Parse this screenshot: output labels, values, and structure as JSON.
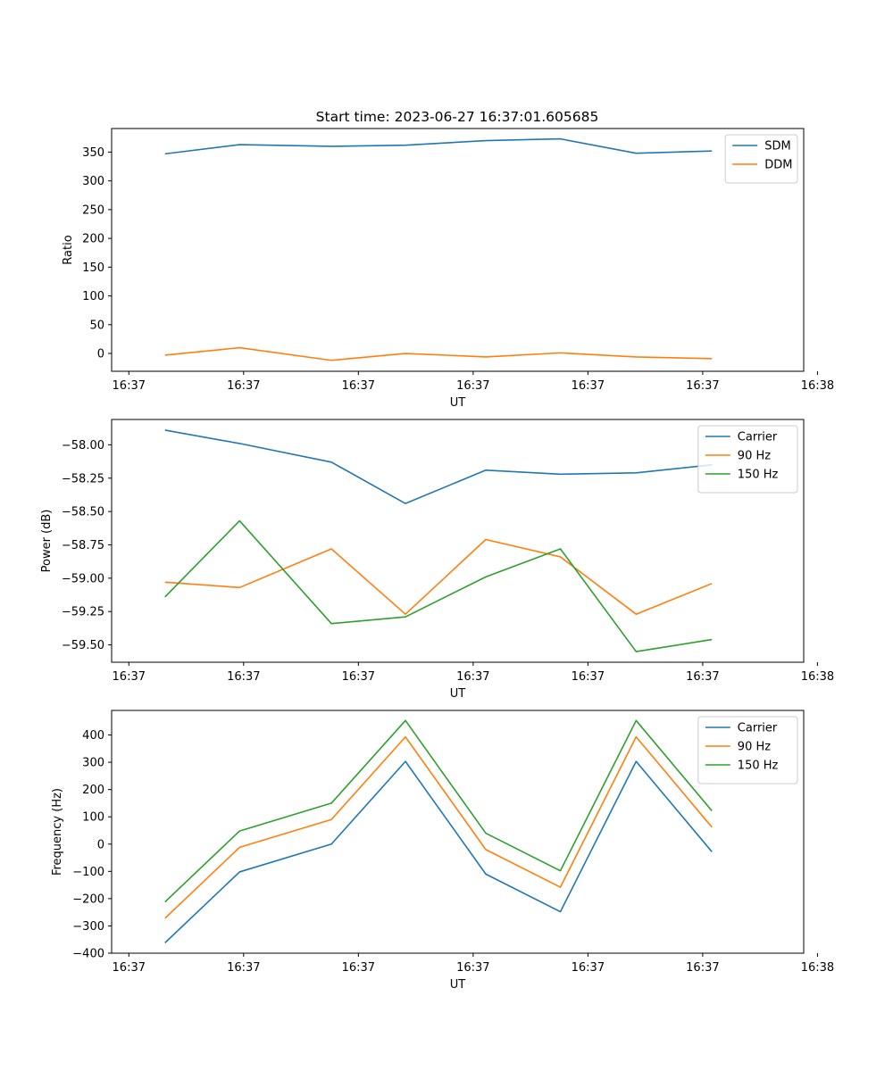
{
  "figure": {
    "title": "Start time: 2023-06-27 16:37:01.605685"
  },
  "chart_data": [
    {
      "type": "line",
      "xlabel": "UT",
      "ylabel": "Ratio",
      "x_tick_labels": [
        "16:37",
        "16:37",
        "16:37",
        "16:37",
        "16:37",
        "16:37",
        "16:38"
      ],
      "xlim": [
        -0.15,
        5.88
      ],
      "x": [
        0.315,
        0.965,
        1.765,
        2.41,
        3.11,
        3.76,
        4.42,
        5.08
      ],
      "ylim": [
        -31,
        391
      ],
      "yticks": [
        0,
        50,
        100,
        150,
        200,
        250,
        300,
        350
      ],
      "legend": "top-right",
      "series": [
        {
          "name": "SDM",
          "color": "#1f77b4",
          "values": [
            347,
            363,
            360,
            362,
            370,
            373,
            348,
            352
          ]
        },
        {
          "name": "DDM",
          "color": "#ff7f0e",
          "values": [
            -3,
            10,
            -12,
            0,
            -6,
            1,
            -6,
            -9
          ]
        }
      ]
    },
    {
      "type": "line",
      "xlabel": "UT",
      "ylabel": "Power (dB)",
      "x_tick_labels": [
        "16:37",
        "16:37",
        "16:37",
        "16:37",
        "16:37",
        "16:37",
        "16:38"
      ],
      "xlim": [
        -0.15,
        5.88
      ],
      "x": [
        0.315,
        0.965,
        1.765,
        2.41,
        3.11,
        3.76,
        4.42,
        5.08
      ],
      "ylim": [
        -59.63,
        -57.81
      ],
      "yticks": [
        -58.0,
        -58.25,
        -58.5,
        -58.75,
        -59.0,
        -59.25,
        -59.5
      ],
      "ytick_labels": [
        "−58.00",
        "−58.25",
        "−58.50",
        "−58.75",
        "−59.00",
        "−59.25",
        "−59.50"
      ],
      "legend": "top-right",
      "series": [
        {
          "name": "Carrier",
          "color": "#1f77b4",
          "values": [
            -57.89,
            -57.99,
            -58.13,
            -58.44,
            -58.19,
            -58.22,
            -58.21,
            -58.15
          ]
        },
        {
          "name": "90 Hz",
          "color": "#ff7f0e",
          "values": [
            -59.03,
            -59.07,
            -58.78,
            -59.27,
            -58.71,
            -58.84,
            -59.27,
            -59.04
          ]
        },
        {
          "name": "150 Hz",
          "color": "#2ca02c",
          "values": [
            -59.14,
            -58.57,
            -59.34,
            -59.29,
            -58.99,
            -58.78,
            -59.55,
            -59.46
          ]
        }
      ]
    },
    {
      "type": "line",
      "xlabel": "UT",
      "ylabel": "Frequency (Hz)",
      "x_tick_labels": [
        "16:37",
        "16:37",
        "16:37",
        "16:37",
        "16:37",
        "16:37",
        "16:38"
      ],
      "xlim": [
        -0.15,
        5.88
      ],
      "x": [
        0.315,
        0.965,
        1.765,
        2.41,
        3.11,
        3.76,
        4.42,
        5.08
      ],
      "ylim": [
        -400,
        490
      ],
      "yticks": [
        -400,
        -300,
        -200,
        -100,
        0,
        100,
        200,
        300,
        400
      ],
      "ytick_labels": [
        "−400",
        "−300",
        "−200",
        "−100",
        "0",
        "100",
        "200",
        "300",
        "400"
      ],
      "legend": "top-right",
      "series": [
        {
          "name": "Carrier",
          "color": "#1f77b4",
          "values": [
            -362,
            -102,
            0,
            303,
            -110,
            -248,
            303,
            -28
          ]
        },
        {
          "name": "90 Hz",
          "color": "#ff7f0e",
          "values": [
            -272,
            -12,
            90,
            393,
            -20,
            -158,
            393,
            62
          ]
        },
        {
          "name": "150 Hz",
          "color": "#2ca02c",
          "values": [
            -212,
            48,
            150,
            453,
            40,
            -98,
            453,
            122
          ]
        }
      ]
    }
  ]
}
